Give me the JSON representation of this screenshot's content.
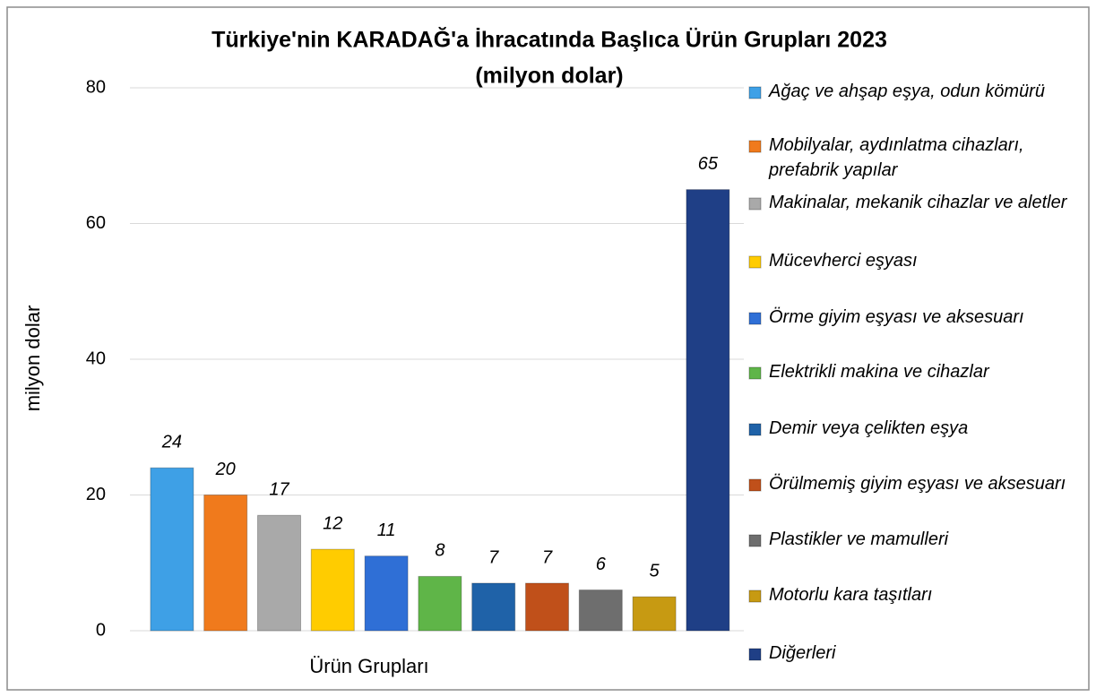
{
  "chart_data": {
    "type": "bar",
    "title": "Türkiye'nin KARADAĞ'a İhracatında Başlıca Ürün Grupları 2023",
    "subtitle": "(milyon dolar)",
    "x_label": "Ürün Grupları",
    "y_label": "milyon dolar",
    "categories": [
      "Ağaç ve ahşap eşya, odun kömürü",
      "Mobilyalar, aydınlatma cihazları, prefabrik yapılar",
      "Makinalar, mekanik cihazlar ve aletler",
      "Mücevherci eşyası",
      "Örme giyim eşyası ve aksesuarı",
      "Elektrikli makina ve cihazlar",
      "Demir veya çelikten eşya",
      "Örülmemiş giyim eşyası ve aksesuarı",
      "Plastikler ve mamulleri",
      "Motorlu kara taşıtları",
      "Diğerleri"
    ],
    "values": [
      24,
      20,
      17,
      12,
      11,
      8,
      7,
      7,
      6,
      5,
      65
    ],
    "colors": [
      "#3ea0e6",
      "#f07a1c",
      "#a9a9a9",
      "#ffcc00",
      "#2f6fd6",
      "#5fb548",
      "#1f62a8",
      "#c0501a",
      "#6e6e6e",
      "#c79a12",
      "#1f3f86"
    ],
    "ylim": [
      0,
      80
    ],
    "yticks": [
      0,
      20,
      40,
      60,
      80
    ],
    "grid": true,
    "legend": "right"
  }
}
